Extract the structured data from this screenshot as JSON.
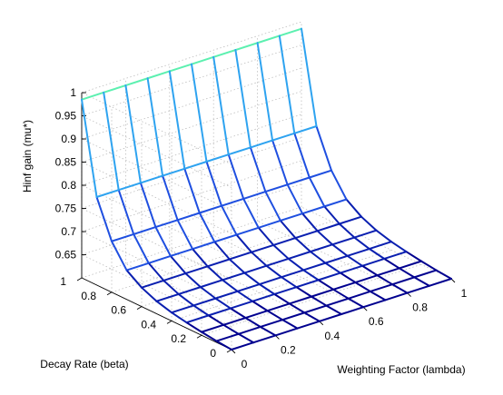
{
  "chart_data": {
    "type": "surface",
    "xlabel": "Weighting Factor (lambda)",
    "ylabel": "Decay Rate (beta)",
    "zlabel": "Hinf gain (mu*)",
    "x_ticks": [
      "0",
      "0.2",
      "0.4",
      "0.6",
      "0.8",
      "1"
    ],
    "y_ticks": [
      "0",
      "0.2",
      "0.4",
      "0.6",
      "0.8",
      "1"
    ],
    "z_ticks": [
      "0.65",
      "0.7",
      "0.75",
      "0.8",
      "0.85",
      "0.9",
      "0.95",
      "1"
    ],
    "xlim": [
      0,
      1
    ],
    "ylim": [
      0,
      1
    ],
    "zlim": [
      0.6,
      1.0
    ],
    "grid": true,
    "colormap": [
      "#00008f",
      "#0a1fb0",
      "#1f4fe0",
      "#2f7fe8",
      "#2ea3f0",
      "#5cf0b0",
      "#8f0000"
    ],
    "x": [
      0,
      0.1,
      0.2,
      0.3,
      0.4,
      0.5,
      0.6,
      0.7,
      0.8,
      0.9,
      1.0
    ],
    "y": [
      0,
      0.1,
      0.2,
      0.3,
      0.4,
      0.5,
      0.6,
      0.7,
      0.8,
      0.9,
      1.0
    ],
    "z_by_beta": [
      0.6,
      0.603,
      0.607,
      0.612,
      0.618,
      0.627,
      0.641,
      0.663,
      0.71,
      0.79,
      0.985
    ]
  }
}
